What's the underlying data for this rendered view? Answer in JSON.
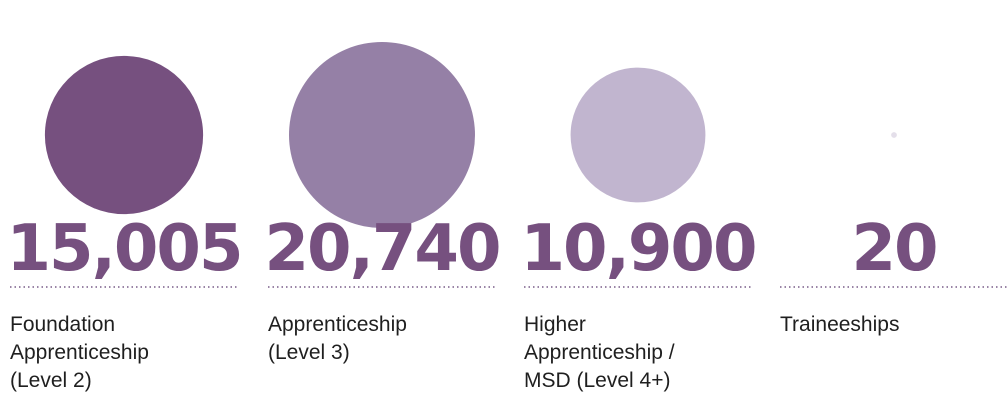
{
  "chart_data": {
    "type": "bubble",
    "title": "",
    "series_color": "#76507f",
    "divider_color": "#9a84a6",
    "items": [
      {
        "label_lines": [
          "Foundation",
          "Apprenticeship",
          "(Level 2)"
        ],
        "value": 15005,
        "value_text": "15,005",
        "bubble_color": "#76507f"
      },
      {
        "label_lines": [
          "Apprenticeship",
          "(Level 3)"
        ],
        "value": 20740,
        "value_text": "20,740",
        "bubble_color": "#9580a6"
      },
      {
        "label_lines": [
          "Higher",
          "Apprenticeship /",
          "MSD (Level 4+)"
        ],
        "value": 10900,
        "value_text": "10,900",
        "bubble_color": "#c1b5cf"
      },
      {
        "label_lines": [
          "Traineeships"
        ],
        "value": 20,
        "value_text": "20",
        "bubble_color": "#e4dfea"
      }
    ]
  }
}
